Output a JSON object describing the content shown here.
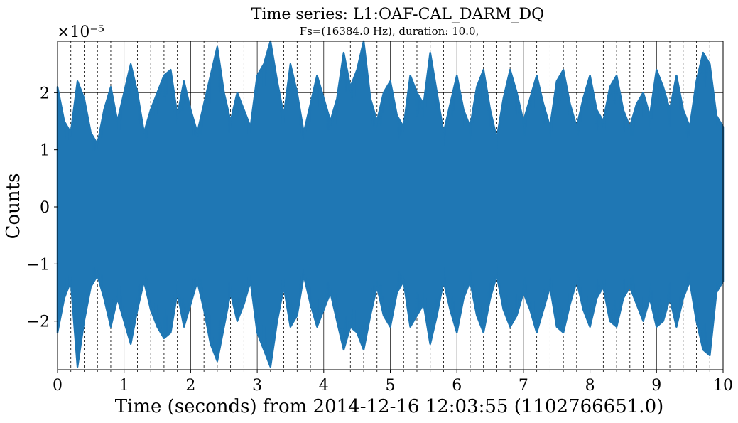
{
  "chart_data": {
    "type": "line",
    "title": "Time series: L1:OAF-CAL_DARM_DQ",
    "subtitle": "Fs=(16384.0 Hz), duration: 10.0,",
    "xlabel": "Time (seconds) from 2014-12-16 12:03:55 (1102766651.0)",
    "ylabel": "Counts",
    "y_multiplier": "×10⁻⁵",
    "xlim": [
      0,
      10
    ],
    "ylim": [
      -2.85,
      2.9
    ],
    "x_ticks": [
      0,
      1,
      2,
      3,
      4,
      5,
      6,
      7,
      8,
      9,
      10
    ],
    "x_tick_labels": [
      "0",
      "1",
      "2",
      "3",
      "4",
      "5",
      "6",
      "7",
      "8",
      "9",
      "10"
    ],
    "y_ticks": [
      -2,
      -1,
      0,
      1,
      2
    ],
    "y_tick_labels": [
      "−2",
      "−1",
      "0",
      "1",
      "2"
    ],
    "x_minor_gridlines": [
      0.2,
      0.4,
      0.6,
      0.8,
      1.2,
      1.4,
      1.6,
      1.8,
      2.2,
      2.4,
      2.6,
      2.8,
      3.2,
      3.4,
      3.6,
      3.8,
      4.2,
      4.4,
      4.6,
      4.8,
      5.2,
      5.4,
      5.6,
      5.8,
      6.2,
      6.4,
      6.6,
      6.8,
      7.2,
      7.4,
      7.6,
      7.8,
      8.2,
      8.4,
      8.6,
      8.8,
      9.2,
      9.4,
      9.6,
      9.8
    ],
    "grid": true,
    "series": [
      {
        "color": "#1f77b4",
        "x": [
          0.0,
          0.1,
          0.2,
          0.3,
          0.4,
          0.5,
          0.6,
          0.7,
          0.8,
          0.9,
          1.0,
          1.1,
          1.2,
          1.3,
          1.4,
          1.5,
          1.6,
          1.7,
          1.8,
          1.9,
          2.0,
          2.1,
          2.2,
          2.3,
          2.4,
          2.5,
          2.6,
          2.7,
          2.8,
          2.9,
          3.0,
          3.1,
          3.2,
          3.3,
          3.4,
          3.5,
          3.6,
          3.7,
          3.8,
          3.9,
          4.0,
          4.1,
          4.2,
          4.3,
          4.4,
          4.5,
          4.6,
          4.7,
          4.8,
          4.9,
          5.0,
          5.1,
          5.2,
          5.3,
          5.4,
          5.5,
          5.6,
          5.7,
          5.8,
          5.9,
          6.0,
          6.1,
          6.2,
          6.3,
          6.4,
          6.5,
          6.6,
          6.7,
          6.8,
          6.9,
          7.0,
          7.1,
          7.2,
          7.3,
          7.4,
          7.5,
          7.6,
          7.7,
          7.8,
          7.9,
          8.0,
          8.1,
          8.2,
          8.3,
          8.4,
          8.5,
          8.6,
          8.7,
          8.8,
          8.9,
          9.0,
          9.1,
          9.2,
          9.3,
          9.4,
          9.5,
          9.6,
          9.7,
          9.8,
          9.9,
          10.0
        ],
        "upper": [
          2.1,
          1.5,
          1.3,
          2.2,
          1.9,
          1.3,
          1.1,
          1.7,
          2.1,
          1.5,
          2.0,
          2.5,
          2.0,
          1.3,
          1.7,
          2.0,
          2.3,
          2.4,
          1.6,
          2.2,
          1.7,
          1.3,
          1.8,
          2.3,
          2.8,
          2.0,
          1.5,
          2.0,
          1.7,
          1.4,
          2.3,
          2.5,
          2.9,
          2.2,
          1.6,
          2.5,
          2.0,
          1.3,
          1.8,
          2.3,
          1.9,
          1.5,
          1.9,
          2.7,
          2.1,
          2.4,
          2.9,
          1.9,
          1.5,
          2.0,
          2.2,
          1.6,
          1.4,
          2.3,
          2.0,
          1.8,
          2.7,
          2.0,
          1.3,
          1.8,
          2.3,
          1.7,
          1.4,
          2.1,
          2.4,
          1.7,
          1.2,
          1.9,
          2.4,
          2.0,
          1.5,
          1.9,
          2.3,
          1.8,
          1.4,
          2.2,
          2.4,
          1.8,
          1.4,
          1.9,
          2.3,
          1.7,
          1.5,
          2.1,
          2.3,
          1.7,
          1.4,
          1.8,
          2.0,
          1.6,
          2.4,
          2.1,
          1.7,
          2.3,
          1.7,
          1.4,
          2.2,
          2.7,
          2.5,
          1.6,
          1.4
        ],
        "lower": [
          -2.2,
          -1.6,
          -1.3,
          -2.8,
          -2.0,
          -1.4,
          -1.2,
          -1.6,
          -2.1,
          -1.6,
          -2.0,
          -2.4,
          -1.8,
          -1.3,
          -1.8,
          -2.1,
          -2.3,
          -2.2,
          -1.5,
          -2.1,
          -1.7,
          -1.3,
          -1.8,
          -2.4,
          -2.7,
          -2.1,
          -1.5,
          -2.0,
          -1.7,
          -1.3,
          -2.2,
          -2.5,
          -2.8,
          -2.0,
          -1.4,
          -2.1,
          -1.9,
          -1.2,
          -1.7,
          -2.1,
          -1.8,
          -1.5,
          -2.0,
          -2.5,
          -2.1,
          -2.2,
          -2.5,
          -1.9,
          -1.4,
          -1.9,
          -2.1,
          -1.5,
          -1.3,
          -2.1,
          -1.9,
          -1.7,
          -2.4,
          -1.9,
          -1.3,
          -1.8,
          -2.2,
          -1.6,
          -1.3,
          -1.9,
          -2.2,
          -1.6,
          -1.2,
          -1.8,
          -2.1,
          -1.9,
          -1.5,
          -1.8,
          -2.2,
          -1.8,
          -1.4,
          -2.1,
          -2.2,
          -1.7,
          -1.3,
          -1.8,
          -2.1,
          -1.6,
          -1.4,
          -2.0,
          -2.1,
          -1.6,
          -1.4,
          -1.7,
          -2.0,
          -1.6,
          -2.1,
          -2.0,
          -1.6,
          -2.1,
          -1.6,
          -1.3,
          -2.0,
          -2.5,
          -2.6,
          -1.5,
          -1.3
        ]
      }
    ]
  }
}
